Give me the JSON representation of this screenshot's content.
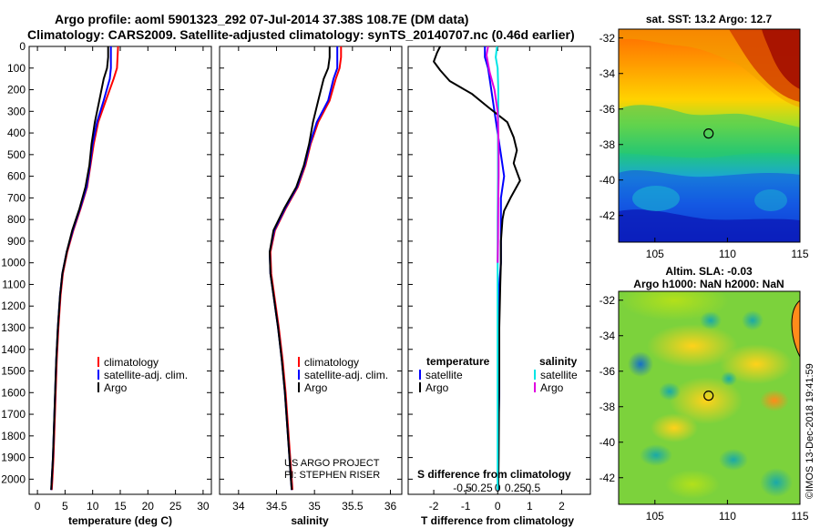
{
  "title": {
    "line1": "Argo profile: aoml 5901323_292 07-Jul-2014 37.38S 108.7E (DM data)",
    "line2": "Climatology: CARS2009. Satellite-adjusted climatology: synTS_20140707.nc (0.46d earlier)"
  },
  "depth_ticks": [
    "0",
    "100",
    "200",
    "300",
    "400",
    "500",
    "600",
    "700",
    "800",
    "900",
    "1000",
    "1100",
    "1200",
    "1300",
    "1400",
    "1500",
    "1600",
    "1700",
    "1800",
    "1900",
    "2000"
  ],
  "colors": {
    "climatology": "#ff0000",
    "satellite": "#0000ff",
    "argo": "#000000",
    "sal_satellite": "#00e5e5",
    "sal_argo": "#e000e0"
  },
  "chart_data": [
    {
      "type": "line",
      "id": "temperature",
      "xlabel": "temperature (deg C)",
      "ylabel": "",
      "xlim": [
        -1.5,
        31.5
      ],
      "ylim": [
        2070,
        0
      ],
      "xticks": [
        0,
        5,
        10,
        15,
        20,
        25,
        30
      ],
      "xtick_labels": [
        "0",
        "5",
        "10",
        "15",
        "20",
        "25",
        "30"
      ],
      "legend_placement": "lower-middle",
      "series": [
        {
          "name": "climatology",
          "color": "#ff0000",
          "x": [
            14.6,
            14.5,
            14.4,
            13.8,
            12.4,
            11.0,
            10.2,
            9.6,
            9.0,
            7.8,
            6.5,
            5.4,
            4.6,
            4.2,
            3.8,
            3.5,
            3.3,
            3.1,
            2.9,
            2.7,
            2.6
          ],
          "y": [
            0,
            50,
            100,
            150,
            250,
            350,
            450,
            550,
            650,
            750,
            850,
            950,
            1050,
            1150,
            1300,
            1450,
            1600,
            1750,
            1900,
            2000,
            2050
          ]
        },
        {
          "name": "satellite-adj. clim.",
          "color": "#0000ff",
          "x": [
            13.3,
            13.3,
            13.3,
            13.1,
            12.0,
            10.8,
            10.0,
            9.5,
            8.9,
            7.7,
            6.4,
            5.3,
            4.5,
            4.1,
            3.7,
            3.4,
            3.2,
            3.0,
            2.8,
            2.6,
            2.5
          ],
          "y": [
            0,
            50,
            100,
            150,
            250,
            350,
            450,
            550,
            650,
            750,
            850,
            950,
            1050,
            1150,
            1300,
            1450,
            1600,
            1750,
            1900,
            2000,
            2050
          ]
        },
        {
          "name": "Argo",
          "color": "#000000",
          "x": [
            12.8,
            12.8,
            12.6,
            12.0,
            11.2,
            10.4,
            9.8,
            9.4,
            8.7,
            7.6,
            6.3,
            5.3,
            4.5,
            4.1,
            3.7,
            3.4,
            3.2,
            3.0,
            2.8,
            2.6,
            2.5
          ],
          "y": [
            0,
            50,
            100,
            150,
            250,
            350,
            450,
            550,
            650,
            750,
            850,
            950,
            1050,
            1150,
            1300,
            1450,
            1600,
            1750,
            1900,
            2000,
            2050
          ]
        }
      ]
    },
    {
      "type": "line",
      "id": "salinity",
      "xlabel": "salinity",
      "ylabel": "",
      "xlim": [
        33.75,
        36.15
      ],
      "ylim": [
        2070,
        0
      ],
      "xticks": [
        34,
        34.5,
        35,
        35.5,
        36
      ],
      "xtick_labels": [
        "34",
        "34.5",
        "35",
        "35.5",
        "36"
      ],
      "legend_placement": "lower-right",
      "series": [
        {
          "name": "climatology",
          "color": "#ff0000",
          "x": [
            35.35,
            35.35,
            35.33,
            35.28,
            35.2,
            35.05,
            34.95,
            34.88,
            34.78,
            34.62,
            34.48,
            34.42,
            34.43,
            34.47,
            34.53,
            34.58,
            34.62,
            34.65,
            34.68,
            34.7,
            34.71
          ],
          "y": [
            0,
            50,
            100,
            150,
            250,
            350,
            450,
            550,
            650,
            750,
            850,
            950,
            1050,
            1150,
            1300,
            1450,
            1600,
            1750,
            1900,
            2000,
            2050
          ]
        },
        {
          "name": "satellite-adj. clim.",
          "color": "#0000ff",
          "x": [
            35.3,
            35.3,
            35.3,
            35.25,
            35.18,
            35.03,
            34.94,
            34.87,
            34.77,
            34.61,
            34.47,
            34.41,
            34.42,
            34.46,
            34.52,
            34.57,
            34.61,
            34.64,
            34.67,
            34.69,
            34.7
          ],
          "y": [
            0,
            50,
            100,
            150,
            250,
            350,
            450,
            550,
            650,
            750,
            850,
            950,
            1050,
            1150,
            1300,
            1450,
            1600,
            1750,
            1900,
            2000,
            2050
          ]
        },
        {
          "name": "Argo",
          "color": "#000000",
          "x": [
            35.2,
            35.2,
            35.18,
            35.12,
            35.05,
            34.98,
            34.93,
            34.86,
            34.76,
            34.6,
            34.46,
            34.41,
            34.42,
            34.46,
            34.52,
            34.57,
            34.61,
            34.64,
            34.67,
            34.69,
            34.7
          ],
          "y": [
            0,
            50,
            100,
            150,
            250,
            350,
            450,
            550,
            650,
            750,
            850,
            950,
            1050,
            1150,
            1300,
            1450,
            1600,
            1750,
            1900,
            2000,
            2050
          ]
        }
      ]
    },
    {
      "type": "line",
      "id": "difference",
      "xlabel": "T difference from climatology",
      "xlabel_top": "S difference from climatology",
      "ylabel": "",
      "xlim": [
        -2.8,
        2.9
      ],
      "ylim": [
        2070,
        0
      ],
      "xticks": [
        -2,
        -1,
        0,
        1,
        2
      ],
      "xtick_labels": [
        "-2",
        "-1",
        "0",
        "1",
        "2"
      ],
      "s_ticks": [
        -0.5,
        -0.25,
        0,
        0.25,
        0.5
      ],
      "s_tick_labels": [
        "-0.5",
        "-0.25",
        "0",
        "0.25",
        "0.5"
      ],
      "legend_placement": "lower",
      "series": [
        {
          "name": "satellite",
          "group": "temperature",
          "color": "#0000ff",
          "x": [
            -0.4,
            -0.4,
            -0.3,
            -0.2,
            -0.1,
            0.0,
            0.1,
            0.2,
            0.1,
            0.1,
            0.1,
            0.1,
            0.05,
            0.05,
            0.05,
            0.05,
            0.02,
            0.02,
            0.02,
            0.02
          ],
          "y": [
            0,
            50,
            100,
            200,
            300,
            400,
            500,
            600,
            700,
            800,
            900,
            1000,
            1100,
            1200,
            1400,
            1600,
            1800,
            1900,
            2000,
            2050
          ]
        },
        {
          "name": "Argo",
          "group": "temperature",
          "color": "#000000",
          "x": [
            -1.8,
            -1.9,
            -2.0,
            -1.8,
            -1.5,
            -0.8,
            -0.3,
            0.3,
            0.5,
            0.6,
            0.5,
            0.7,
            0.4,
            0.2,
            0.15,
            0.1,
            0.1,
            0.08,
            0.05,
            0.05,
            0.04,
            0.03,
            0.02
          ],
          "y": [
            0,
            30,
            70,
            110,
            160,
            220,
            280,
            350,
            420,
            480,
            540,
            620,
            700,
            760,
            800,
            900,
            1000,
            1100,
            1300,
            1500,
            1700,
            1900,
            2050
          ]
        },
        {
          "name": "satellite",
          "group": "salinity",
          "color": "#00e5e5",
          "x": [
            -0.02,
            -0.06,
            0.0,
            0.02,
            0.02,
            0.01,
            0.01,
            0.01,
            0.0,
            0.0,
            0.0,
            0.0,
            0.0
          ],
          "y": [
            0,
            50,
            100,
            200,
            300,
            400,
            500,
            600,
            800,
            1000,
            1400,
            1800,
            2050
          ]
        },
        {
          "name": "Argo",
          "group": "salinity",
          "color": "#e000e0",
          "x": [
            -0.3,
            -0.35,
            -0.3,
            -0.25,
            -0.1,
            0.0,
            0.02,
            0.03,
            0.03,
            0.02,
            0.01,
            0.0
          ],
          "y": [
            0,
            40,
            80,
            120,
            200,
            300,
            400,
            500,
            600,
            700,
            900,
            1000
          ]
        }
      ]
    },
    {
      "type": "heatmap",
      "id": "sst-map",
      "title": "sat. SST: 13.2 Argo: 12.7",
      "xlim": [
        102.5,
        115
      ],
      "ylim": [
        -43.5,
        -31.5
      ],
      "xticks": [
        105,
        110,
        115
      ],
      "xtick_labels": [
        "105",
        "110",
        "115"
      ],
      "yticks": [
        -32,
        -34,
        -36,
        -38,
        -40,
        -42
      ],
      "ytick_labels": [
        "-32",
        "-34",
        "-36",
        "-38",
        "-40",
        "-42"
      ],
      "marker": {
        "lon": 108.7,
        "lat": -37.38
      }
    },
    {
      "type": "heatmap",
      "id": "sla-map",
      "title": "Altim. SLA: -0.03",
      "subtitle": "Argo h1000: NaN h2000: NaN",
      "xlim": [
        102.5,
        115
      ],
      "ylim": [
        -43.5,
        -31.5
      ],
      "xticks": [
        105,
        110,
        115
      ],
      "xtick_labels": [
        "105",
        "110",
        "115"
      ],
      "yticks": [
        -32,
        -34,
        -36,
        -38,
        -40,
        -42
      ],
      "ytick_labels": [
        "-32",
        "-34",
        "-36",
        "-38",
        "-40",
        "-42"
      ],
      "marker": {
        "lon": 108.7,
        "lat": -37.38
      }
    }
  ],
  "legends": {
    "temperature": [
      "climatology",
      "satellite-adj. clim.",
      "Argo"
    ],
    "salinity": [
      "climatology",
      "satellite-adj. clim.",
      "Argo"
    ],
    "difference": {
      "temp_header": "temperature",
      "sal_header": "salinity",
      "temp_items": [
        "satellite",
        "Argo"
      ],
      "sal_items": [
        "satellite",
        "Argo"
      ]
    }
  },
  "credits": {
    "project": "US ARGO PROJECT",
    "pi": "PI: STEPHEN RISER",
    "imos": "©IMOS 13-Dec-2018 19:41:59"
  }
}
